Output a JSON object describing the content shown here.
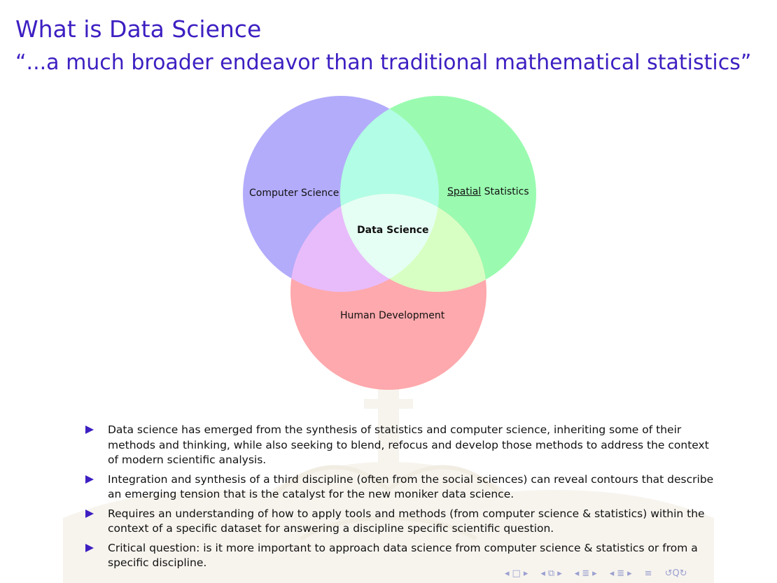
{
  "slide": {
    "title": "What is Data Science",
    "subtitle": "“...a much broader endeavor than traditional mathematical statistics”"
  },
  "venn": {
    "circles": [
      {
        "name": "computer-science",
        "label": "Computer Science",
        "color": "#b3acfb"
      },
      {
        "name": "spatial-statistics",
        "label_underlined": "Spatial",
        "label_rest": " Statistics",
        "color": "#9afbb0"
      },
      {
        "name": "human-development",
        "label": "Human Development",
        "color": "#fea9ad"
      }
    ],
    "center_label": "Data Science"
  },
  "bullets": [
    "Data science has emerged from the synthesis of statistics and computer science, inheriting some of their methods and thinking, while also seeking to blend, refocus and develop those methods to address the context of modern scientific analysis.",
    "Integration and synthesis of a third discipline (often from the social sciences) can reveal contours that describe an emerging tension that is the catalyst for the new moniker data science.",
    "Requires an understanding of how to apply tools and methods (from computer science & statistics) within the context of a specific dataset for answering a discipline specific scientific question.",
    "Critical question: is it more important to approach data science from computer science & statistics or from a specific discipline."
  ],
  "colors": {
    "accent": "#3d1fc2",
    "overlap_cs_ss": "#b2fde5",
    "overlap_cs_hd": "#e8bcfb",
    "overlap_ss_hd": "#d8ffc3",
    "overlap_all": "#e6fff4"
  },
  "navigation": {
    "icons": [
      "nav-prev-frame-icon",
      "nav-frame-icon",
      "nav-next-frame-icon",
      "nav-prev-subsection-icon",
      "nav-subsection-icon",
      "nav-next-subsection-icon",
      "nav-prev-section-icon",
      "nav-section-icon",
      "nav-next-section-icon",
      "nav-align-icon",
      "nav-search-icon"
    ]
  }
}
